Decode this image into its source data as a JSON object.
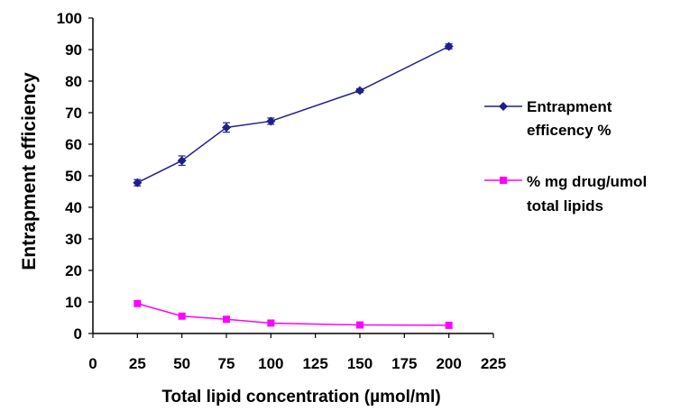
{
  "chart_data": {
    "type": "line",
    "xlabel": "Total lipid concentration (µmol/ml)",
    "ylabel": "Entrapment efficiency",
    "xlim": [
      0,
      225
    ],
    "ylim": [
      0,
      100
    ],
    "x_ticks": [
      0,
      25,
      50,
      75,
      100,
      125,
      150,
      175,
      200,
      225
    ],
    "y_ticks": [
      0,
      10,
      20,
      30,
      40,
      50,
      60,
      70,
      80,
      90,
      100
    ],
    "grid": false,
    "legend_position": "right",
    "series": [
      {
        "name": "Entrapment efficency %",
        "marker": "diamond",
        "color": "#1f1f8c",
        "x": [
          25,
          50,
          75,
          100,
          150,
          200
        ],
        "y": [
          47.8,
          54.8,
          65.3,
          67.3,
          77,
          91
        ],
        "error": [
          1,
          1.5,
          1.5,
          1,
          0.6,
          0.8
        ]
      },
      {
        "name": "% mg drug/umol total lipids",
        "marker": "square",
        "color": "#ff00ff",
        "x": [
          25,
          50,
          75,
          100,
          150,
          200
        ],
        "y": [
          9.5,
          5.5,
          4.5,
          3.3,
          2.7,
          2.6
        ],
        "error": [
          0,
          0,
          0,
          0,
          0,
          0
        ]
      }
    ]
  },
  "legend": {
    "series1_line1": "Entrapment",
    "series1_line2": "efficency %",
    "series2_line1": "% mg drug/umol",
    "series2_line2": "total lipids"
  }
}
